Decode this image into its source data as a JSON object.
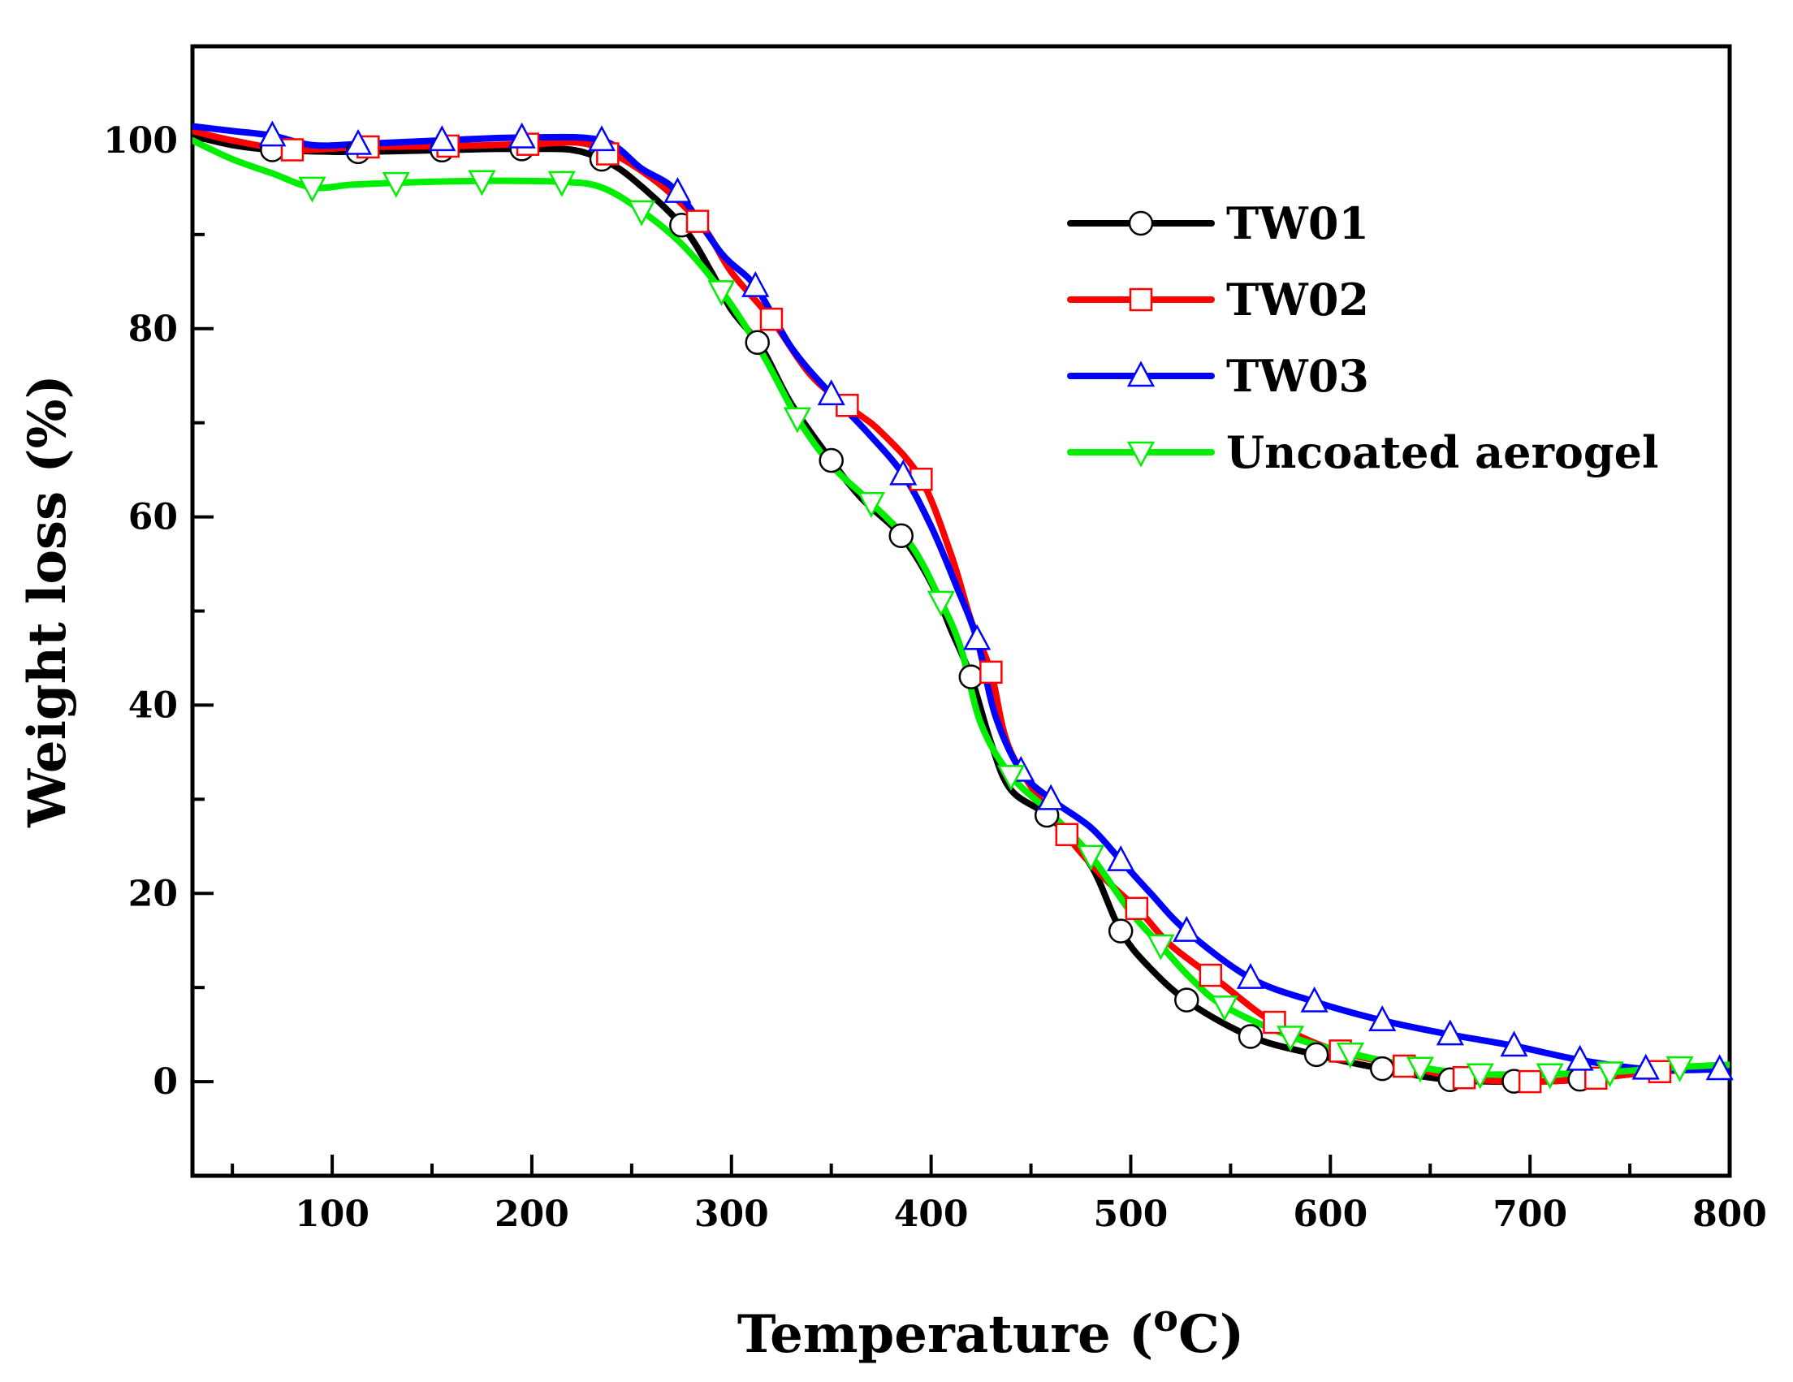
{
  "chart_data": {
    "type": "line",
    "title": "",
    "xlabel": "Temperature (",
    "xlabel_sup": "o",
    "xlabel_tail": "C)",
    "ylabel": "Weight loss (%)",
    "xlim": [
      30,
      800
    ],
    "ylim": [
      -10,
      110
    ],
    "x_ticks": [
      100,
      200,
      300,
      400,
      500,
      600,
      700,
      800
    ],
    "y_ticks": [
      0,
      20,
      40,
      60,
      80,
      100
    ],
    "legend_position": "top-right",
    "series": [
      {
        "name": "TW01",
        "color": "#000000",
        "marker": "circle",
        "x": [
          30,
          50,
          70,
          100,
          115,
          140,
          160,
          180,
          200,
          220,
          235,
          250,
          275,
          290,
          300,
          315,
          330,
          350,
          365,
          385,
          400,
          410,
          420,
          430,
          440,
          460,
          480,
          495,
          510,
          530,
          560,
          590,
          630,
          660,
          700,
          730,
          760,
          800
        ],
        "y": [
          100.5,
          99.5,
          99,
          98.8,
          98.8,
          98.9,
          99,
          99.1,
          99.1,
          99,
          98,
          96,
          91,
          86,
          82,
          78,
          72,
          66,
          62,
          58,
          53,
          48,
          43,
          36,
          31,
          28,
          23,
          16,
          12,
          8.3,
          4.8,
          3,
          1.2,
          0.2,
          0,
          0.3,
          1,
          1.5
        ]
      },
      {
        "name": "TW02",
        "color": "#ff0000",
        "marker": "square",
        "x": [
          30,
          50,
          80,
          115,
          160,
          200,
          230,
          260,
          285,
          300,
          320,
          340,
          360,
          375,
          395,
          410,
          420,
          430,
          440,
          465,
          485,
          505,
          520,
          545,
          570,
          600,
          640,
          670,
          700,
          730,
          760,
          800
        ],
        "y": [
          101,
          100,
          99,
          99.3,
          99.4,
          99.6,
          99.5,
          96,
          91,
          86,
          81,
          75,
          71.5,
          69,
          64,
          56,
          49,
          43.5,
          35,
          27,
          22,
          18,
          14.5,
          10.5,
          6.5,
          3.5,
          1.5,
          0.3,
          0,
          0.3,
          1,
          1.5
        ]
      },
      {
        "name": "TW03",
        "color": "#0000ff",
        "marker": "triangle-up",
        "x": [
          30,
          50,
          70,
          90,
          113,
          155,
          195,
          235,
          255,
          273,
          295,
          312,
          330,
          350,
          368,
          386,
          400,
          412,
          423,
          432,
          445,
          460,
          480,
          495,
          510,
          528,
          560,
          592,
          626,
          660,
          692,
          725,
          760,
          795,
          800
        ],
        "y": [
          101.5,
          101,
          100.5,
          99.5,
          99.6,
          100,
          100.3,
          100,
          97,
          94.5,
          88,
          84.5,
          78,
          73,
          69,
          64.5,
          59,
          53,
          47,
          39,
          33,
          30,
          27,
          23.5,
          20,
          16,
          11,
          8.5,
          6.5,
          5,
          3.8,
          2.3,
          1.3,
          1.3,
          1.2
        ]
      },
      {
        "name": "Uncoated aerogel",
        "color": "#00ee00",
        "marker": "triangle-down",
        "x": [
          30,
          50,
          70,
          90,
          110,
          132,
          175,
          215,
          235,
          255,
          275,
          295,
          315,
          333,
          350,
          370,
          390,
          405,
          415,
          425,
          440,
          460,
          480,
          500,
          515,
          530,
          547,
          580,
          610,
          645,
          675,
          710,
          740,
          770,
          800
        ],
        "y": [
          100,
          98,
          96.5,
          95,
          95.3,
          95.5,
          95.7,
          95.6,
          95,
          92.5,
          89,
          84,
          77.5,
          70.5,
          65.5,
          61.5,
          57,
          51,
          46,
          38,
          32.5,
          28.5,
          24,
          18,
          14.5,
          11,
          8,
          4.8,
          3,
          1.5,
          0.8,
          0.8,
          1,
          1.5,
          1.8
        ]
      }
    ],
    "marker_positions": [
      [
        70,
        113,
        155,
        195,
        235,
        275,
        313,
        350,
        385,
        420,
        458,
        495,
        528,
        560,
        593,
        626,
        660,
        692,
        725
      ],
      [
        80,
        118,
        158,
        198,
        238,
        283,
        320,
        358,
        395,
        430,
        468,
        503,
        540,
        572,
        605,
        637,
        667,
        700,
        733,
        765
      ],
      [
        70,
        113,
        155,
        195,
        235,
        273,
        312,
        350,
        386,
        423,
        445,
        460,
        495,
        528,
        560,
        592,
        626,
        660,
        692,
        725,
        758,
        795
      ],
      [
        90,
        132,
        175,
        215,
        255,
        295,
        333,
        370,
        405,
        440,
        480,
        515,
        547,
        580,
        610,
        645,
        675,
        710,
        740,
        775
      ]
    ]
  }
}
